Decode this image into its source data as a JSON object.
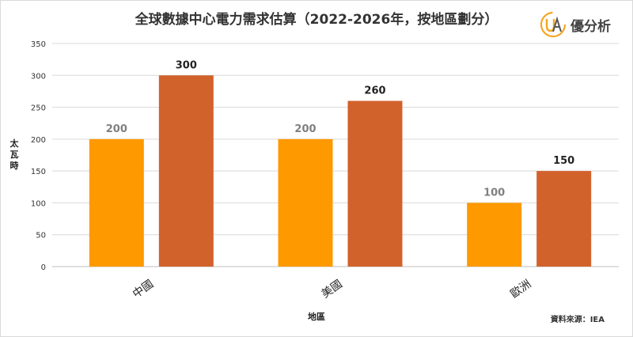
{
  "chart_data": {
    "type": "bar",
    "title": "全球數據中心電力需求估算（2022-2026年，按地區劃分）",
    "categories": [
      "中國",
      "美國",
      "歐洲"
    ],
    "series": [
      {
        "values": [
          200,
          200,
          100
        ],
        "color": "#FF9900"
      },
      {
        "values": [
          300,
          260,
          150
        ],
        "color": "#D2622B"
      }
    ],
    "xlabel": "地區",
    "ylabel": "太瓦時",
    "ylim": [
      0,
      350
    ],
    "yticks": [
      0,
      50,
      100,
      150,
      200,
      250,
      300,
      350
    ],
    "grid": true,
    "data_label_colors": [
      "#7f7f7f",
      "#222222"
    ]
  },
  "brand": {
    "name": "優分析",
    "mark_letters": "UA",
    "mark_colors": [
      "#F5A623",
      "#555555"
    ]
  },
  "source": "資料來源：IEA"
}
